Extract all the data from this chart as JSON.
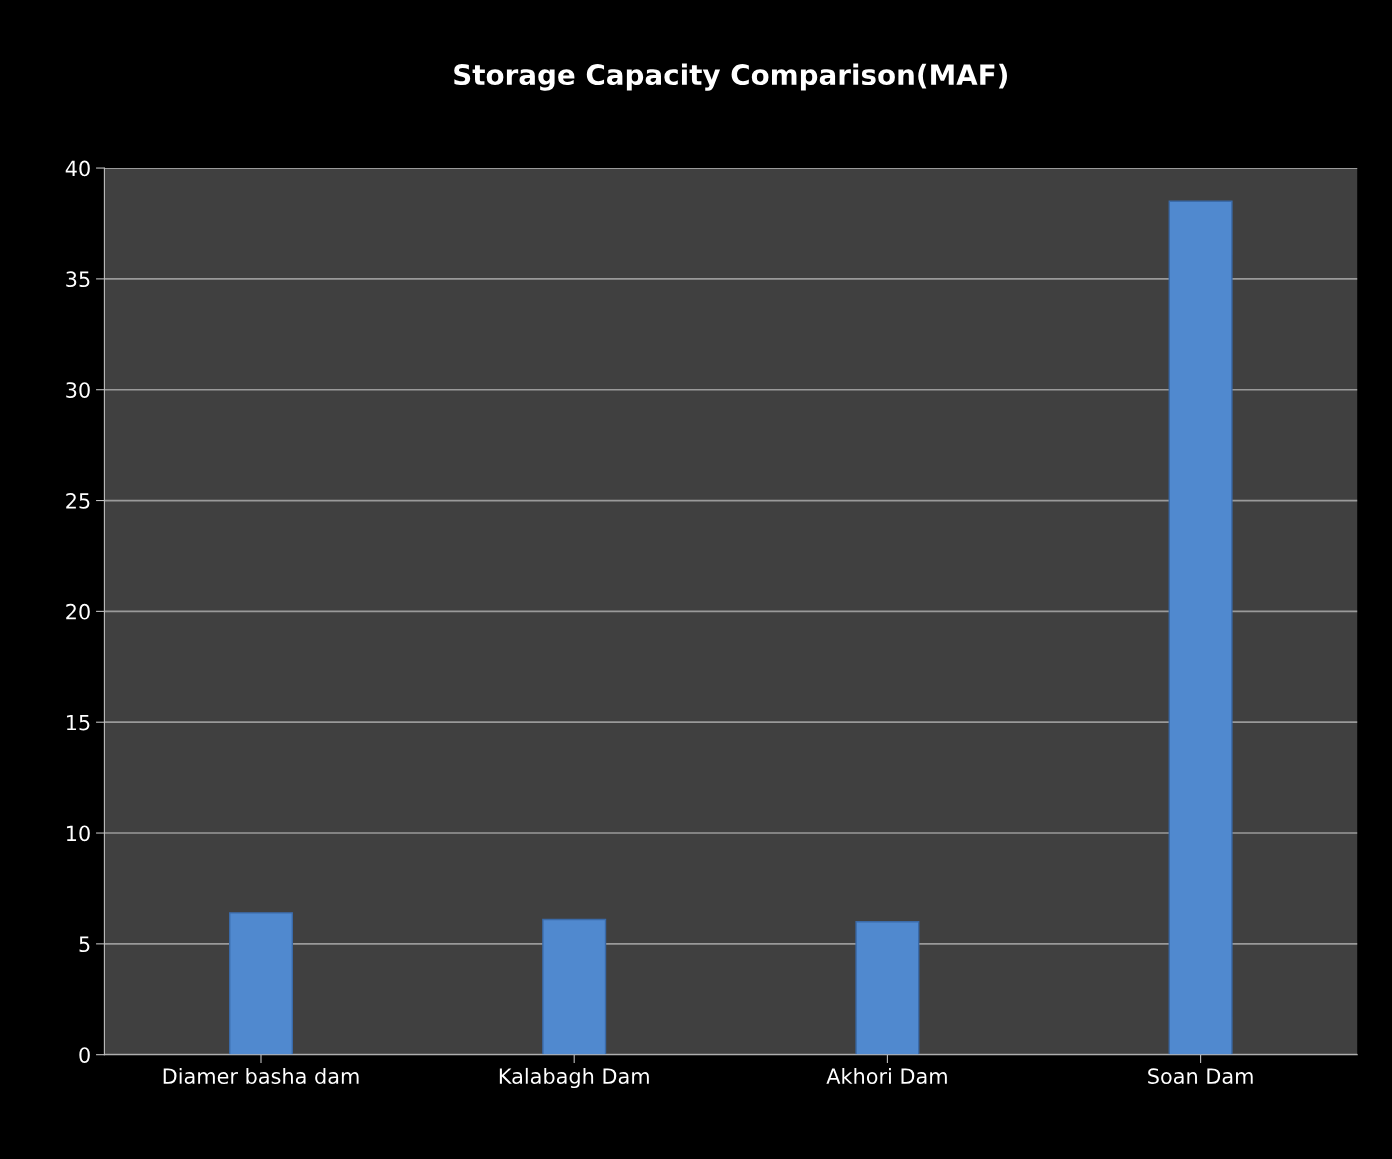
{
  "chart_data": {
    "type": "bar",
    "title": "Storage Capacity Comparison(MAF)",
    "categories": [
      "Diamer basha dam",
      "Kalabagh Dam",
      "Akhori Dam",
      "Soan Dam"
    ],
    "values": [
      6.4,
      6.1,
      6.0,
      38.5
    ],
    "color": "#5089cf",
    "ylim": [
      0,
      40
    ],
    "yticks": [
      0,
      5,
      10,
      15,
      20,
      25,
      30,
      35,
      40
    ],
    "grid": "y"
  }
}
